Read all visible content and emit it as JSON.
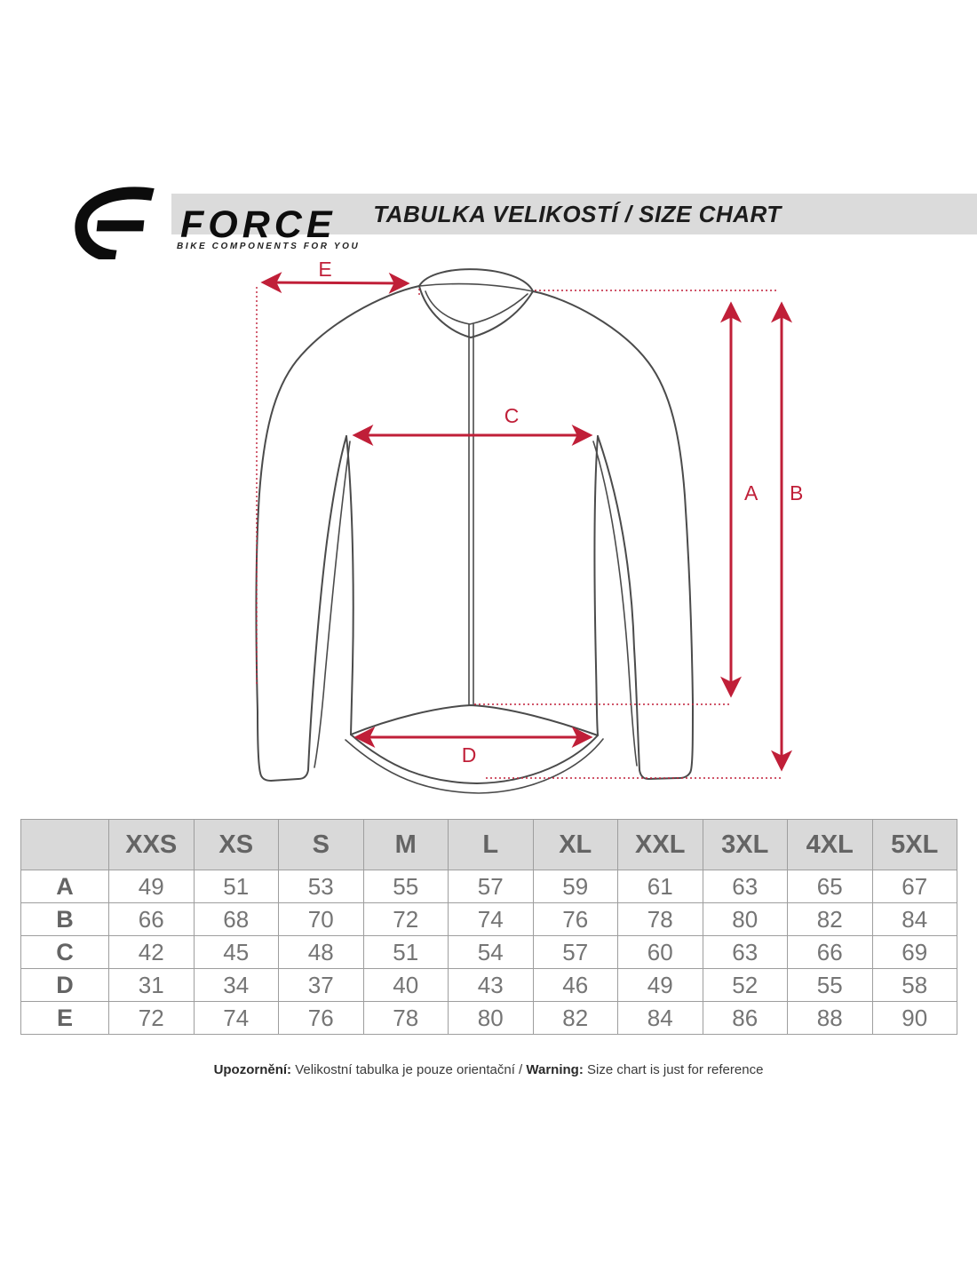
{
  "brand": {
    "name": "FORCE",
    "tagline": "BIKE COMPONENTS FOR YOU"
  },
  "header": {
    "title": "TABULKA VELIKOSTÍ / SIZE CHART"
  },
  "diagram": {
    "description": "long-sleeve cycling jersey measurement drawing",
    "labels": {
      "A": "A",
      "B": "B",
      "C": "C",
      "D": "D",
      "E": "E"
    }
  },
  "table": {
    "corner": "",
    "columns": [
      "XXS",
      "XS",
      "S",
      "M",
      "L",
      "XL",
      "XXL",
      "3XL",
      "4XL",
      "5XL"
    ],
    "rows": [
      {
        "label": "A",
        "values": [
          49,
          51,
          53,
          55,
          57,
          59,
          61,
          63,
          65,
          67
        ]
      },
      {
        "label": "B",
        "values": [
          66,
          68,
          70,
          72,
          74,
          76,
          78,
          80,
          82,
          84
        ]
      },
      {
        "label": "C",
        "values": [
          42,
          45,
          48,
          51,
          54,
          57,
          60,
          63,
          66,
          69
        ]
      },
      {
        "label": "D",
        "values": [
          31,
          34,
          37,
          40,
          43,
          46,
          49,
          52,
          55,
          58
        ]
      },
      {
        "label": "E",
        "values": [
          72,
          74,
          76,
          78,
          80,
          82,
          84,
          86,
          88,
          90
        ]
      }
    ]
  },
  "footer": {
    "cz_label": "Upozornění:",
    "cz_text": " Velikostní tabulka je pouze orientační / ",
    "en_label": "Warning:",
    "en_text": " Size chart is just for reference"
  },
  "colors": {
    "accent_red": "#c01f38",
    "outline_gray": "#4b4b4b",
    "header_bar_bg": "#dbdbdb",
    "table_header_bg": "#d9d9d9"
  }
}
